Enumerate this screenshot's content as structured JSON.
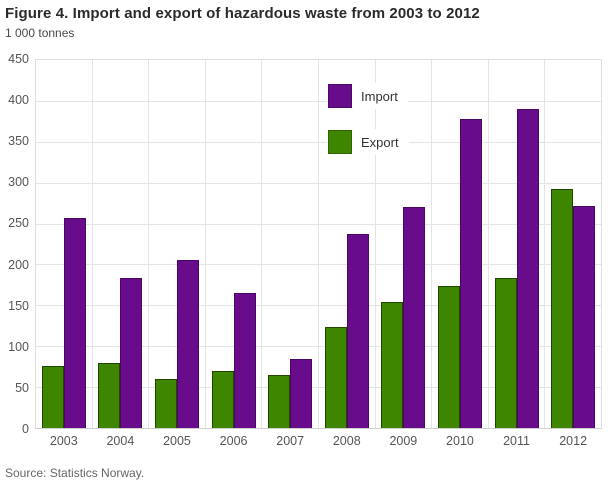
{
  "header": {
    "title": "Figure 4. Import and export of hazardous waste from 2003 to 2012",
    "subtitle": "1 000 tonnes"
  },
  "chart_data": {
    "type": "bar",
    "title": "Figure 4. Import and export of hazardous waste from 2003 to 2012",
    "ylabel": "1 000 tonnes",
    "xlabel": "",
    "categories": [
      "2003",
      "2004",
      "2005",
      "2006",
      "2007",
      "2008",
      "2009",
      "2010",
      "2011",
      "2012"
    ],
    "series": [
      {
        "name": "Import",
        "color": "#690c8c",
        "border_color": "#4a0763",
        "values": [
          257,
          183,
          206,
          165,
          84,
          237,
          270,
          378,
          390,
          271
        ]
      },
      {
        "name": "Export",
        "color": "#3e8500",
        "border_color": "#1f4700",
        "values": [
          76,
          80,
          60,
          70,
          65,
          124,
          154,
          174,
          183,
          292
        ]
      }
    ],
    "bar_order_in_group": [
      "Export",
      "Import"
    ],
    "ylim": [
      0,
      450
    ],
    "yticks": [
      0,
      50,
      100,
      150,
      200,
      250,
      300,
      350,
      400,
      450
    ],
    "grid": "horizontal and vertical, light gray",
    "legend_position": "inside top center",
    "gridline_color": "#e4e4e4",
    "axis_label_color": "#555555"
  },
  "footer": {
    "source": "Source: Statistics Norway."
  }
}
